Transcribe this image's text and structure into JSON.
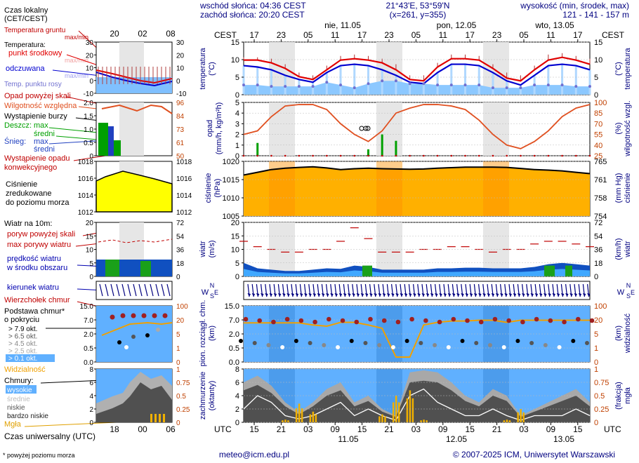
{
  "header": {
    "sunrise": "wschód słońca: 04:36 CEST",
    "sunset": "zachód słońca: 20:20 CEST",
    "coord1": "21°43'E, 53°59'N",
    "coord2": "(x=261,  y=355)",
    "altitude_label": "wysokość (min, środek, max)",
    "altitude_values": "121 - 141 - 157 m",
    "tz_left": "CEST",
    "tz_right": "CEST",
    "days": [
      "nie, 11.05",
      "pon, 12.05",
      "wto, 13.05"
    ],
    "top_hours": [
      "17",
      "23",
      "05",
      "11",
      "17",
      "23",
      "05",
      "11",
      "17",
      "23",
      "05",
      "11",
      "17"
    ]
  },
  "footer": {
    "utc_left": "UTC",
    "utc_right": "UTC",
    "hours": [
      "15",
      "21",
      "03",
      "09",
      "15",
      "21",
      "03",
      "09",
      "15",
      "21",
      "03",
      "09",
      "15"
    ],
    "dates": [
      "11.05",
      "12.05",
      "13.05"
    ],
    "email": "meteo@icm.edu.pl",
    "copyright": "© 2007-2025 ICM, Uniwersytet Warszawski"
  },
  "legend": {
    "local_time": [
      "Czas lokalny",
      "(CET/CEST)"
    ],
    "local_ticks": [
      "20",
      "02",
      "08"
    ],
    "utc_time": "Czas uniwersalny (UTC)",
    "utc_ticks": [
      "18",
      "00",
      "06"
    ],
    "footnote": "* powyżej poziomu morza",
    "temp": {
      "ground": "Temperatura gruntu",
      "ground_sub": "max/min",
      "label": "Temperatura:",
      "mid": "punkt środkowy",
      "maxmin": "max/min",
      "felt": "odczuwana",
      "felt_maxmin": "max/min",
      "dew": "Temp. punktu rosy",
      "ticks": [
        "30",
        "20",
        "10",
        "0",
        "-10"
      ]
    },
    "precip": {
      "above": "Opad powyżej skali",
      "humidity": "Wilgotność względna",
      "storm": "Wystąpienie burzy",
      "rain": "Deszcz:",
      "max": "max",
      "mean": "średni",
      "snow": "Śnieg:",
      "convective": [
        "Wystąpienie opadu",
        "konwekcyjnego"
      ],
      "ticks_left": [
        "2.0",
        "1.5",
        "1.0",
        "0.5",
        "0"
      ],
      "ticks_right": [
        "96",
        "84",
        "73",
        "61",
        "50"
      ]
    },
    "pressure": {
      "label": [
        "Ciśnienie",
        "zredukowane",
        "do poziomu morza"
      ],
      "ticks_left": [
        "1018",
        "1016",
        "1014",
        "1012"
      ],
      "ticks_right": [
        "1018",
        "1016",
        "1014",
        "1012"
      ]
    },
    "wind": {
      "title": "Wiatr na 10m:",
      "gust_above": "poryw powyżej skali",
      "gust_max": "max porywy wiatru",
      "speed": [
        "prędkość wiatru",
        "w środku obszaru"
      ],
      "direction": "kierunek wiatru",
      "ticks_left": [
        "20",
        "15",
        "10",
        "5",
        "0"
      ],
      "ticks_right": [
        "72",
        "54",
        "36",
        "18",
        "0"
      ]
    },
    "cloudbase": {
      "top": "Wierzchołek chmur",
      "base": [
        "Podstawa chmur*",
        "o pokryciu"
      ],
      "okt": [
        "> 7.9 okt.",
        "> 6.5 okt.",
        "> 4.5 okt.",
        "> 2.5 okt.",
        "> 0.1 okt."
      ],
      "visibility": "Widzialność",
      "ticks_left": [
        "15.0",
        "7.0",
        "2.0",
        "0.5",
        "0.0"
      ],
      "ticks_right": [
        "100",
        "20",
        "5",
        "1",
        "0"
      ]
    },
    "clouds": {
      "title": "Chmury:",
      "high": "wysokie",
      "mid": "średnie",
      "low": "niskie",
      "very_low": "bardzo niskie",
      "fog": "Mgła",
      "ticks_left": [
        "8",
        "6",
        "4",
        "2",
        "0"
      ],
      "ticks_right": [
        "1",
        "0.75",
        "0.5",
        "0.25",
        "0"
      ]
    }
  },
  "axis_labels": {
    "temp_l": [
      "temperatura",
      "(°C)"
    ],
    "temp_r": [
      "(°C)",
      "temperatura"
    ],
    "precip_l": [
      "opad",
      "(mm/h, kg/m²h)"
    ],
    "precip_r": [
      "(%)",
      "wilgotność wzgl."
    ],
    "press_l": [
      "ciśnienie",
      "(hPa)"
    ],
    "press_r": [
      "(mm Hg)",
      "ciśnienie"
    ],
    "wind_l": [
      "wiatr",
      "(m/s)"
    ],
    "wind_r": [
      "(km/h)",
      "wiatr"
    ],
    "dir_l": [
      "W",
      "N",
      "S",
      "E"
    ],
    "cb_l": [
      "pion. rozciągł. chm.",
      "(km)"
    ],
    "cb_r": [
      "(km)",
      "widzialność"
    ],
    "cl_l": [
      "zachmurzenie",
      "(oktanty)"
    ],
    "cl_r": [
      "(frakcja)",
      "mgła"
    ]
  },
  "chart_data": [
    {
      "type": "line",
      "title": "temperatura (°C)",
      "ylim": [
        -2,
        17
      ],
      "yticks_left": [
        "15",
        "10",
        "5",
        "0"
      ],
      "yticks_right": [
        "15",
        "10",
        "5",
        "0"
      ],
      "x_hours_utc": [
        15,
        18,
        21,
        0,
        3,
        6,
        9,
        12,
        15,
        18,
        21,
        0,
        3,
        6,
        9,
        12,
        15,
        18,
        21,
        0,
        3,
        6,
        9,
        12,
        15,
        18
      ],
      "series": [
        {
          "name": "punkt środkowy",
          "color": "#e00000",
          "values": [
            10.5,
            10.5,
            9.5,
            7.5,
            4.5,
            3.5,
            7,
            10.5,
            11,
            10.5,
            9.5,
            7,
            3.5,
            3,
            8,
            11,
            11,
            10.5,
            7.5,
            4,
            3,
            7,
            10.5,
            11.5,
            10.5,
            9
          ]
        },
        {
          "name": "odczuwana",
          "color": "#0000d0",
          "values": [
            8.5,
            8,
            7,
            5,
            3.5,
            2.5,
            6,
            8.5,
            9,
            8.5,
            7,
            5,
            2.5,
            2,
            6,
            9,
            9,
            8.5,
            6,
            3,
            1.5,
            5,
            8.5,
            9,
            8.5,
            7
          ]
        },
        {
          "name": "max",
          "color": "#e00000",
          "values": [
            11.5,
            11.5,
            11,
            9,
            6,
            5,
            8.5,
            12,
            12.5,
            12,
            11,
            9,
            5,
            5,
            9.5,
            12.5,
            12.5,
            12,
            9,
            6,
            5,
            8.5,
            12.5,
            13,
            12,
            11
          ]
        },
        {
          "name": "Temp. punktu rosy",
          "color": "#7070d0",
          "values": [
            1.5,
            1.5,
            1,
            1,
            1,
            1,
            2.5,
            1.5,
            0.5,
            2,
            3,
            3,
            2,
            2,
            1.5,
            1.5,
            1.5,
            1.5,
            0.5,
            0.5,
            0.5,
            1.5,
            1.5,
            1.5,
            1,
            1
          ]
        }
      ]
    },
    {
      "type": "line",
      "title": "opad (mm/h) / wilgotność wzgl. (%)",
      "ylim": [
        0,
        5
      ],
      "yticks_left": [
        "5",
        "4",
        "3",
        "2",
        "1",
        "0"
      ],
      "yticks_right": [
        "100",
        "85",
        "70",
        "55",
        "40",
        "25"
      ],
      "series": [
        {
          "name": "Wilgotność względna",
          "color": "#e05020",
          "values": [
            55,
            60,
            80,
            95,
            97,
            97,
            90,
            70,
            55,
            45,
            60,
            85,
            92,
            97,
            97,
            95,
            90,
            75,
            55,
            40,
            35,
            45,
            60,
            80,
            92,
            97
          ]
        },
        {
          "name": "Deszcz max",
          "color": "#00a000",
          "values": [
            0,
            1.2,
            0,
            0,
            0,
            0,
            0,
            0,
            0,
            0.6,
            2,
            1.4,
            0,
            0,
            0,
            0,
            0,
            0,
            0,
            0,
            0,
            0,
            0,
            0,
            0,
            0
          ]
        }
      ]
    },
    {
      "type": "area",
      "title": "ciśnienie (hPa)",
      "ylim": [
        1005,
        1025
      ],
      "yticks_left": [
        "1020",
        "1015",
        "1010",
        "1005"
      ],
      "yticks_right": [
        "765",
        "761",
        "758",
        "754"
      ],
      "values": [
        1020,
        1021,
        1022,
        1022.5,
        1022.8,
        1023,
        1022.6,
        1022,
        1022.3,
        1022.5,
        1022.3,
        1022.2,
        1022.1,
        1022.2,
        1022.5,
        1022.7,
        1022.9,
        1022.9,
        1022.9,
        1022.8,
        1022.4,
        1022,
        1021.8,
        1021.5,
        1021,
        1020.5
      ]
    },
    {
      "type": "area",
      "title": "wiatr (m/s)",
      "ylim": [
        0,
        20
      ],
      "yticks_left": [
        "20",
        "15",
        "10",
        "5",
        "0"
      ],
      "yticks_right": [
        "72",
        "54",
        "36",
        "18",
        "0"
      ],
      "series": [
        {
          "name": "prędkość wiatru",
          "values": [
            5,
            3,
            2.5,
            2,
            2,
            2.5,
            3,
            2.8,
            4,
            3.5,
            2.5,
            2.5,
            2.5,
            2.5,
            3,
            3,
            3.2,
            3.2,
            3,
            3,
            3,
            3.5,
            4.5,
            5,
            4.5,
            4
          ]
        },
        {
          "name": "max porywy wiatru",
          "values": [
            13,
            11,
            10,
            9,
            9,
            10,
            10,
            13,
            18,
            14,
            9,
            9,
            9,
            10,
            10,
            11,
            11,
            10,
            9,
            10,
            10,
            12,
            13,
            13,
            12,
            11
          ]
        }
      ]
    },
    {
      "type": "line",
      "title": "pion. rozciągł. chm. (km) / widzialność (km)",
      "ylim": [
        0,
        15
      ],
      "yticks_left": [
        "15.0",
        "7.0",
        "2.0",
        "0.5",
        "0.0"
      ],
      "yticks_right": [
        "100",
        "20",
        "5",
        "1",
        "0"
      ],
      "series": [
        {
          "name": "Widzialność",
          "color": "#f0a000",
          "values": [
            24,
            24,
            24,
            24,
            24,
            20,
            18,
            25,
            25,
            20,
            15,
            0.5,
            0.5,
            20,
            25,
            28,
            28,
            30,
            30,
            25,
            30,
            30,
            30,
            30,
            30,
            30
          ]
        }
      ]
    },
    {
      "type": "area",
      "title": "zachmurzenie (oktanty) / mgła (frakcja)",
      "ylim": [
        0,
        8
      ],
      "yticks_left": [
        "8",
        "6",
        "4",
        "2",
        "0"
      ],
      "yticks_right": [
        "1",
        "0.75",
        "0.5",
        "0.25",
        "0"
      ],
      "series": [
        {
          "name": "całkowite",
          "values": [
            6,
            7,
            5.5,
            3,
            1.5,
            3,
            5,
            6,
            3,
            4,
            2,
            1,
            7.5,
            7.8,
            7.5,
            6,
            4,
            3,
            5,
            4,
            1,
            2,
            3,
            4,
            5,
            3
          ]
        },
        {
          "name": "niskie",
          "values": [
            2,
            4,
            3,
            1,
            0.5,
            1,
            2,
            3,
            1,
            2,
            1,
            0.3,
            4,
            5,
            3,
            2,
            1,
            1,
            2,
            1,
            0.3,
            1,
            1,
            1,
            2,
            1
          ]
        },
        {
          "name": "Mgła",
          "values": [
            0,
            0,
            0,
            0.05,
            0.35,
            0.2,
            0,
            0,
            0,
            0,
            0.15,
            0.5,
            0.6,
            0.05,
            0,
            0,
            0,
            0,
            0,
            0.05,
            0.25,
            0,
            0,
            0,
            0,
            0
          ]
        }
      ]
    }
  ]
}
